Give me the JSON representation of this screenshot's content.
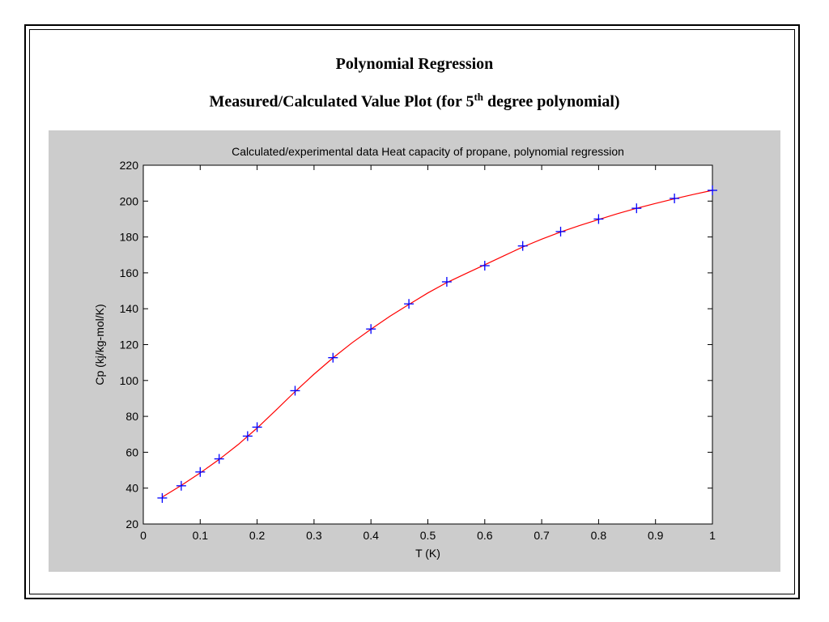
{
  "slide": {
    "title_line1": "Polynomial Regression",
    "title_line2_prefix": "Measured/Calculated Value Plot (for 5",
    "title_line2_sup": "th",
    "title_line2_suffix": " degree polynomial)"
  },
  "chart_data": {
    "type": "line",
    "title": "Calculated/experimental data Heat capacity of propane, polynomial regression",
    "xlabel": "T (K)",
    "ylabel": "Cp (kj/kg-mol/K)",
    "xlim": [
      0,
      1
    ],
    "ylim": [
      20,
      220
    ],
    "xticks": [
      0,
      0.1,
      0.2,
      0.3,
      0.4,
      0.5,
      0.6,
      0.7,
      0.8,
      0.9,
      1
    ],
    "xtick_labels": [
      "0",
      "0.1",
      "0.2",
      "0.3",
      "0.4",
      "0.5",
      "0.6",
      "0.7",
      "0.8",
      "0.9",
      "1"
    ],
    "yticks": [
      20,
      40,
      60,
      80,
      100,
      120,
      140,
      160,
      180,
      200,
      220
    ],
    "ytick_labels": [
      "20",
      "40",
      "60",
      "80",
      "100",
      "120",
      "140",
      "160",
      "180",
      "200",
      "220"
    ],
    "grid": false,
    "series": [
      {
        "type": "scatter",
        "marker": "plus",
        "color": "#0000ff",
        "x": [
          0.0333,
          0.0667,
          0.1,
          0.1333,
          0.1833,
          0.2,
          0.2667,
          0.3333,
          0.4,
          0.4667,
          0.5333,
          0.6,
          0.6667,
          0.7333,
          0.8,
          0.8667,
          0.9333,
          1.0
        ],
        "y": [
          34.5,
          41.3,
          49.0,
          56.3,
          69.0,
          74.0,
          94.3,
          112.7,
          128.7,
          142.7,
          155.0,
          164.0,
          175.0,
          183.0,
          190.0,
          196.0,
          201.5,
          206.0
        ]
      },
      {
        "type": "line",
        "color": "#ff0000",
        "x": [
          0.0333,
          0.0667,
          0.1,
          0.1333,
          0.1667,
          0.2,
          0.2333,
          0.2667,
          0.3,
          0.3333,
          0.3667,
          0.4,
          0.4333,
          0.4667,
          0.5,
          0.5333,
          0.5667,
          0.6,
          0.6333,
          0.6667,
          0.7,
          0.7333,
          0.7667,
          0.8,
          0.8333,
          0.8667,
          0.9,
          0.9333,
          0.9667,
          1.0
        ],
        "y": [
          35.0,
          41.5,
          48.5,
          56.0,
          64.3,
          73.5,
          83.5,
          93.8,
          103.5,
          112.6,
          121.0,
          128.6,
          135.8,
          142.4,
          148.8,
          154.6,
          159.6,
          164.5,
          169.5,
          174.4,
          178.8,
          182.8,
          186.4,
          189.7,
          193.0,
          196.0,
          198.7,
          201.3,
          203.7,
          206.0
        ]
      }
    ]
  }
}
